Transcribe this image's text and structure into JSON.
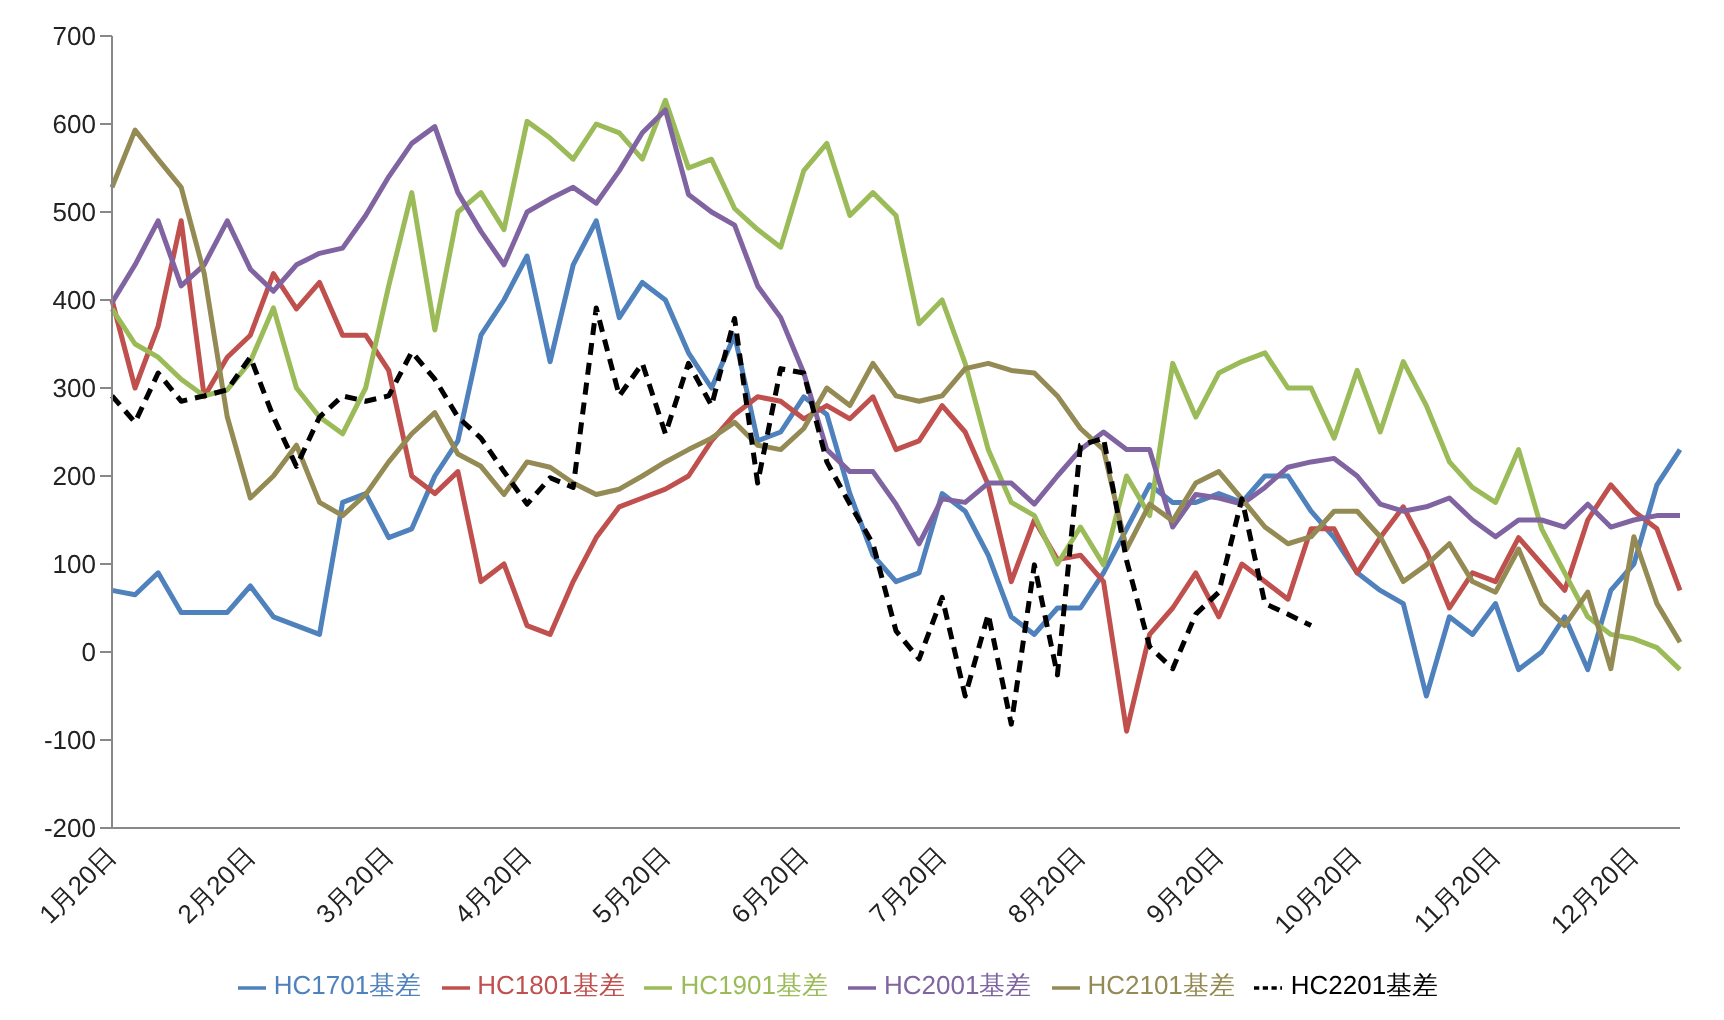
{
  "chart_data": {
    "type": "line",
    "categories": [
      "1月20日",
      null,
      null,
      null,
      null,
      null,
      "2月20日",
      null,
      null,
      null,
      null,
      null,
      "3月20日",
      null,
      null,
      null,
      null,
      null,
      "4月20日",
      null,
      null,
      null,
      null,
      null,
      "5月20日",
      null,
      null,
      null,
      null,
      null,
      "6月20日",
      null,
      null,
      null,
      null,
      null,
      "7月20日",
      null,
      null,
      null,
      null,
      null,
      "8月20日",
      null,
      null,
      null,
      null,
      null,
      "9月20日",
      null,
      null,
      null,
      null,
      null,
      "10月20日",
      null,
      null,
      null,
      null,
      null,
      "11月20日",
      null,
      null,
      null,
      null,
      null,
      "12月20日",
      null,
      null
    ],
    "ylim": [
      -200,
      700
    ],
    "yticks": [
      -200,
      -100,
      0,
      100,
      200,
      300,
      400,
      500,
      600,
      700
    ],
    "grid": false,
    "legend": "bottom",
    "marker": "none",
    "series": [
      {
        "name": "HC1701基差",
        "color": "#4f81bd",
        "values": [
          70,
          65,
          90,
          45,
          45,
          45,
          75,
          40,
          30,
          20,
          170,
          180,
          130,
          140,
          200,
          240,
          360,
          400,
          450,
          330,
          440,
          490,
          380,
          420,
          400,
          340,
          300,
          360,
          240,
          250,
          290,
          270,
          180,
          110,
          80,
          90,
          180,
          160,
          110,
          40,
          20,
          50,
          50,
          90,
          140,
          190,
          170,
          170,
          180,
          170,
          200,
          200,
          160,
          130,
          90,
          70,
          55,
          -50,
          40,
          20,
          55,
          -20,
          0,
          40,
          -20,
          70,
          100,
          190,
          230
        ]
      },
      {
        "name": "HC1801基差",
        "color": "#c0504d",
        "values": [
          400,
          300,
          370,
          490,
          290,
          335,
          360,
          430,
          390,
          420,
          360,
          360,
          320,
          200,
          180,
          205,
          80,
          100,
          30,
          20,
          80,
          130,
          165,
          175,
          185,
          200,
          240,
          270,
          290,
          285,
          265,
          280,
          265,
          290,
          230,
          240,
          280,
          250,
          190,
          80,
          150,
          105,
          110,
          80,
          -90,
          20,
          50,
          90,
          40,
          100,
          80,
          60,
          140,
          140,
          90,
          130,
          165,
          115,
          50,
          90,
          80,
          130,
          100,
          70,
          150,
          190,
          160,
          140,
          70
        ]
      },
      {
        "name": "HC1901基差",
        "color": "#9bbb59",
        "values": [
          390,
          350,
          335,
          310,
          291,
          298,
          330,
          391,
          300,
          267,
          248,
          300,
          416,
          522,
          366,
          500,
          522,
          480,
          603,
          584,
          560,
          600,
          590,
          560,
          627,
          550,
          560,
          504,
          480,
          460,
          547,
          578,
          496,
          522,
          496,
          373,
          400,
          328,
          230,
          170,
          155,
          100,
          142,
          99,
          200,
          155,
          328,
          267,
          317,
          330,
          340,
          300,
          300,
          243,
          320,
          250,
          330,
          280,
          216,
          187,
          170,
          230,
          140,
          90,
          40,
          20,
          15,
          5,
          -20
        ]
      },
      {
        "name": "HC2001基差",
        "color": "#8064a2",
        "values": [
          397,
          440,
          490,
          416,
          440,
          490,
          435,
          410,
          440,
          453,
          459,
          496,
          540,
          578,
          597,
          522,
          478,
          440,
          500,
          515,
          528,
          510,
          547,
          590,
          616,
          520,
          500,
          485,
          416,
          380,
          317,
          230,
          205,
          205,
          168,
          123,
          174,
          170,
          192,
          192,
          168,
          200,
          230,
          250,
          230,
          230,
          142,
          179,
          175,
          168,
          187,
          210,
          216,
          220,
          200,
          168,
          160,
          165,
          175,
          150,
          131,
          150,
          150,
          142,
          168,
          142,
          150,
          155,
          155
        ]
      },
      {
        "name": "HC2101基差",
        "color": "#948a54",
        "values": [
          528,
          593,
          560,
          528,
          430,
          267,
          175,
          200,
          235,
          170,
          155,
          179,
          216,
          248,
          272,
          225,
          211,
          179,
          216,
          210,
          192,
          179,
          185,
          200,
          216,
          230,
          243,
          261,
          235,
          230,
          254,
          300,
          280,
          328,
          291,
          285,
          291,
          322,
          328,
          320,
          317,
          291,
          254,
          230,
          117,
          168,
          149,
          192,
          205,
          174,
          142,
          123,
          131,
          160,
          160,
          131,
          80,
          99,
          123,
          80,
          68,
          117,
          55,
          30,
          68,
          -19,
          131,
          55,
          11
        ]
      },
      {
        "name": "HC2201基差",
        "color": "#000000",
        "line_style": "dashed",
        "values": [
          291,
          261,
          317,
          285,
          291,
          298,
          335,
          267,
          211,
          267,
          291,
          285,
          291,
          341,
          310,
          267,
          243,
          205,
          168,
          198,
          187,
          391,
          291,
          328,
          248,
          328,
          280,
          379,
          192,
          322,
          317,
          216,
          168,
          123,
          24,
          -8,
          62,
          -50,
          43,
          -82,
          99,
          -26,
          235,
          243,
          104,
          6,
          -19,
          43,
          68,
          174,
          55,
          43,
          30,
          null,
          null,
          null,
          null,
          null,
          null,
          null,
          null,
          null,
          null,
          null,
          null,
          null,
          null,
          null,
          null
        ]
      }
    ]
  }
}
